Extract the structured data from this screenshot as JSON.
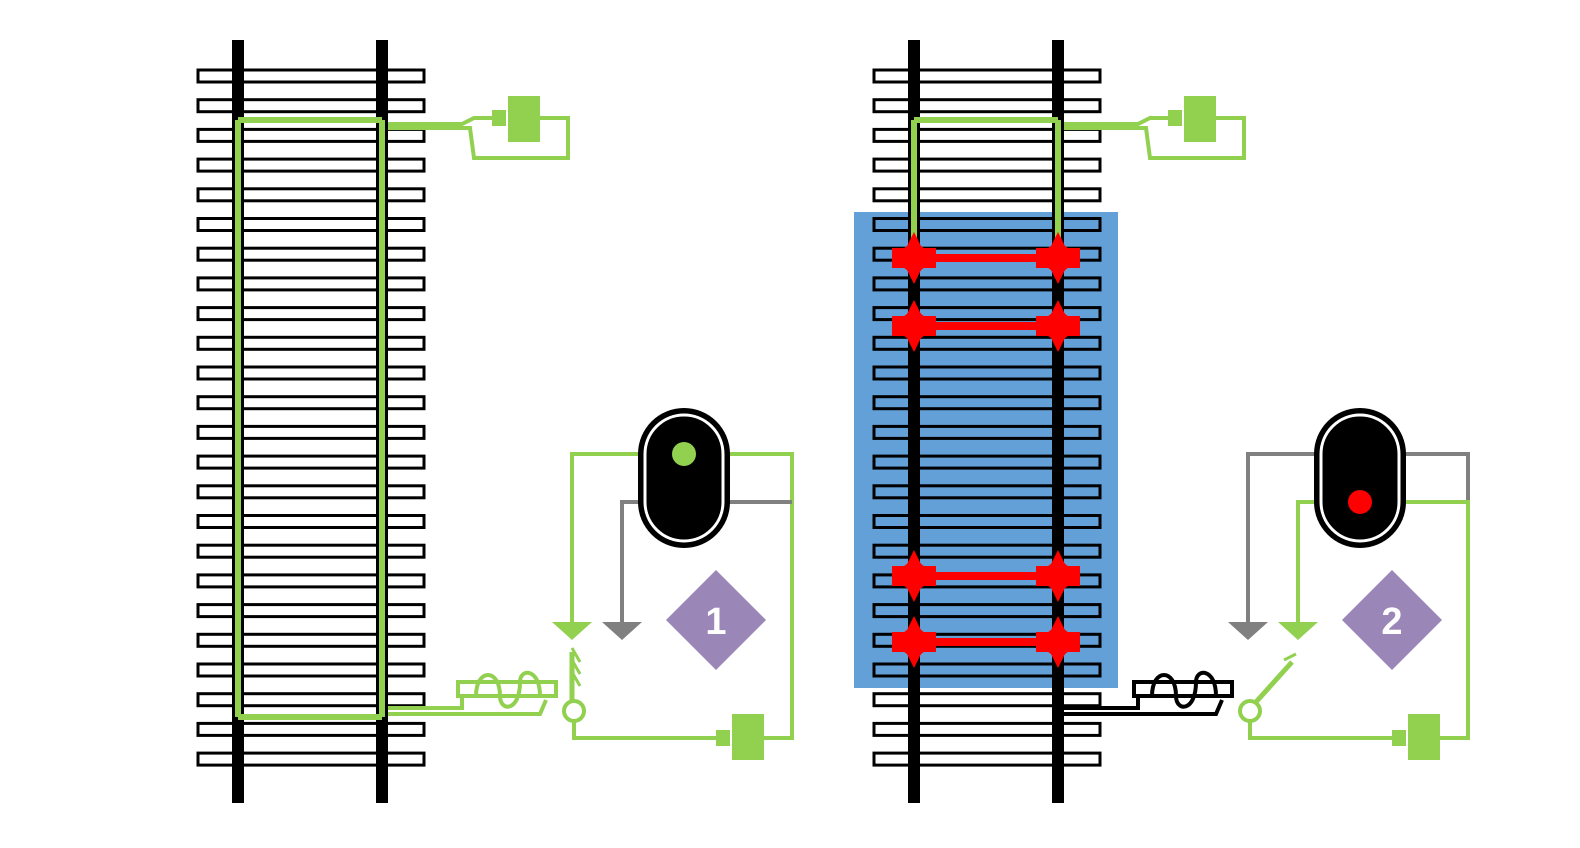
{
  "diagram": {
    "colors": {
      "background": "#ffffff",
      "rail": "#000000",
      "sleeper_fill": "#ffffff",
      "sleeper_stroke": "#000000",
      "current_green": "#92d050",
      "return_gray": "#808080",
      "occupancy_block": "#5b9bd5",
      "train_axle_red": "#ff0000",
      "signal_body": "#000000",
      "signal_green_lamp": "#92d050",
      "signal_red_lamp": "#ff0000",
      "badge_purple": "#9b86b8",
      "badge_text": "#ffffff"
    },
    "scenarios": [
      {
        "state": "track-clear",
        "signal_aspect": "green",
        "relay_energized": true,
        "train_present": false,
        "axles": 0,
        "badge_label": "1"
      },
      {
        "state": "track-occupied",
        "signal_aspect": "red",
        "relay_energized": false,
        "train_present": true,
        "axles": 4,
        "badge_label": "2"
      }
    ],
    "icons": {
      "battery": "battery-icon",
      "relay_coil": "relay-coil-icon",
      "switch_contact": "relay-contact-icon",
      "signal": "signal-head-icon",
      "badge": "diamond-badge-icon"
    }
  }
}
